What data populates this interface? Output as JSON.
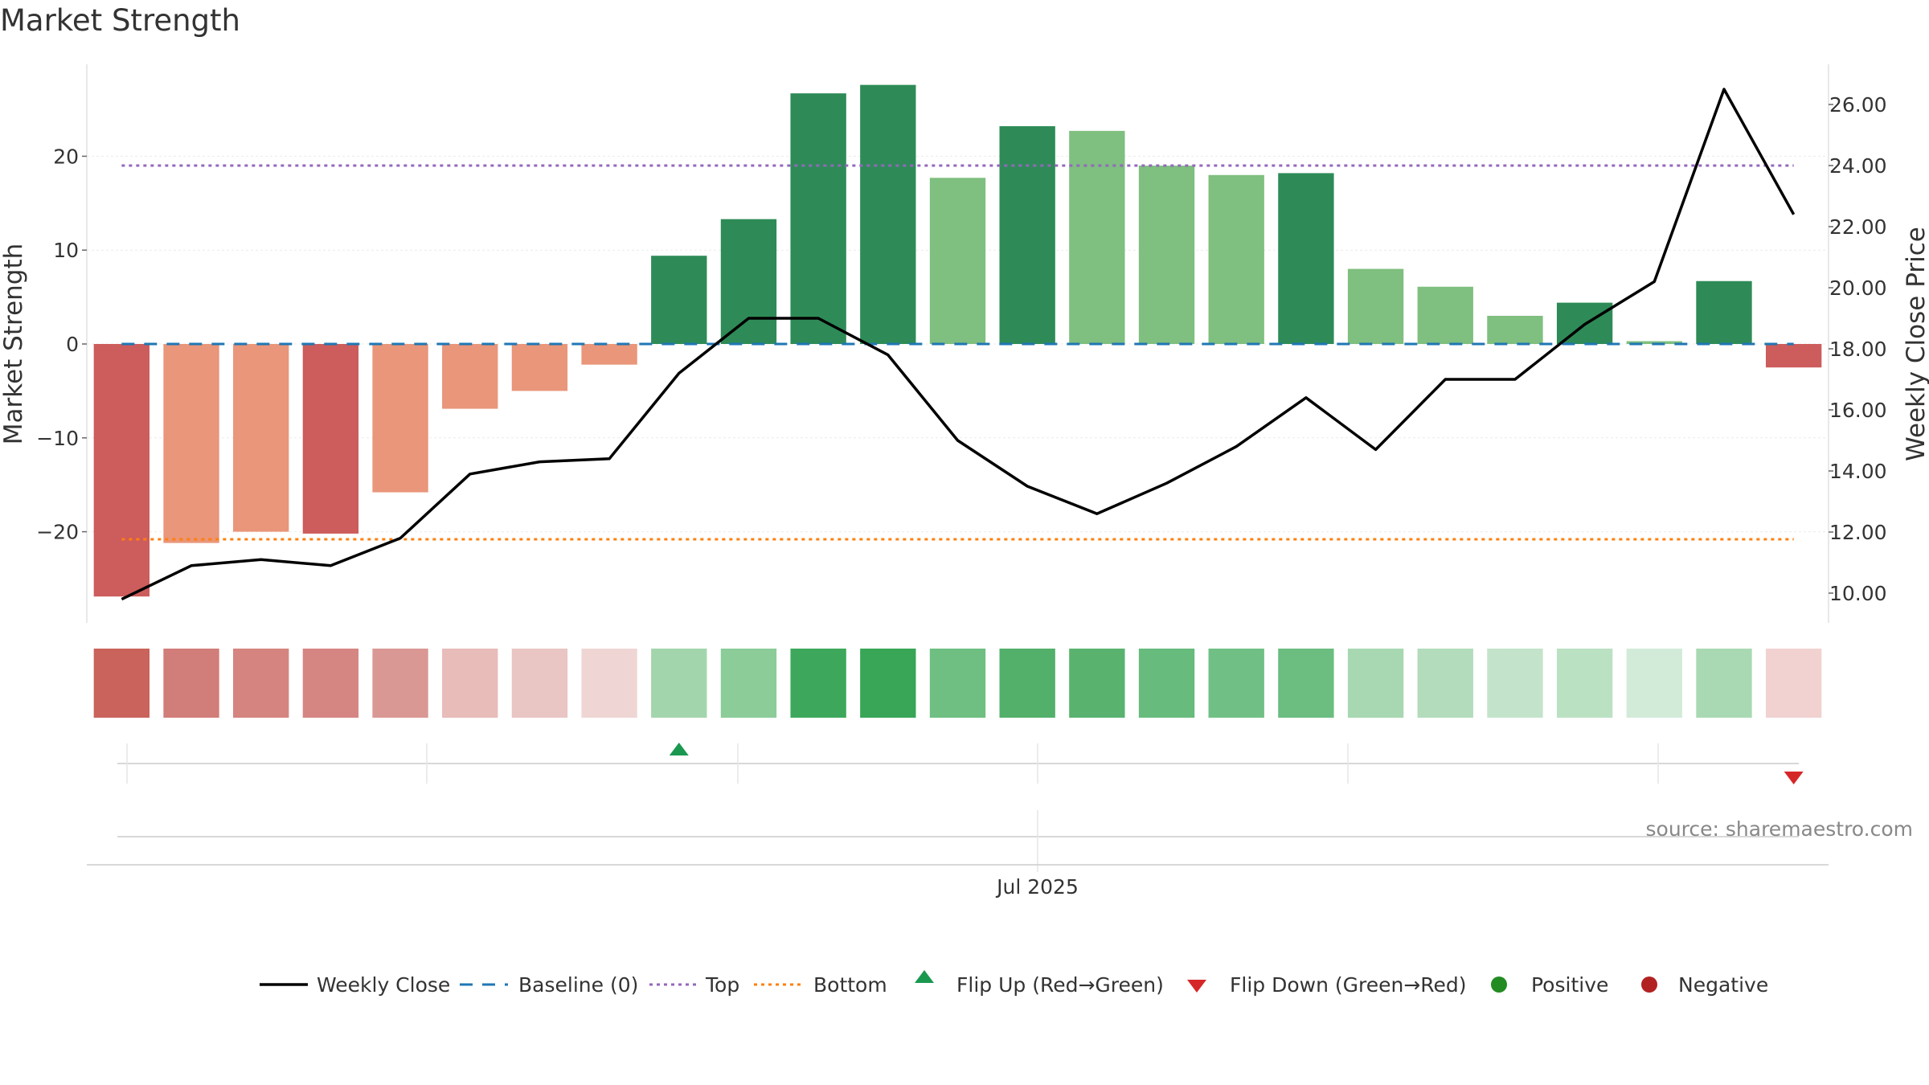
{
  "title": "Market Strength",
  "source": "source: sharemaestro.com",
  "chart_data": {
    "type": "bar",
    "title": "Market Strength",
    "ylabel_left": "Market Strength",
    "ylabel_right": "Weekly Close Price",
    "left_axis": {
      "ylim": [
        -30,
        30
      ],
      "ticks": [
        20,
        10,
        0,
        -10,
        -20
      ],
      "tick_labels": [
        "20",
        "10",
        "0",
        "−10",
        "−20"
      ]
    },
    "right_axis": {
      "ylim": [
        9,
        27.8
      ],
      "ticks": [
        26,
        24,
        22,
        20,
        18,
        16,
        14,
        12,
        10
      ],
      "tick_labels": [
        "26.00",
        "24.00",
        "22.00",
        "20.00",
        "18.00",
        "16.00",
        "14.00",
        "12.00",
        "10.00"
      ]
    },
    "x_tick_label": "Jul 2025",
    "bars": [
      {
        "value": -26.9,
        "color": "#cd5c5c"
      },
      {
        "value": -21.2,
        "color": "#e9967a"
      },
      {
        "value": -20.0,
        "color": "#e9967a"
      },
      {
        "value": -20.2,
        "color": "#cd5c5c"
      },
      {
        "value": -15.8,
        "color": "#e9967a"
      },
      {
        "value": -6.9,
        "color": "#e9967a"
      },
      {
        "value": -5.0,
        "color": "#e9967a"
      },
      {
        "value": -2.2,
        "color": "#e9967a"
      },
      {
        "value": 9.4,
        "color": "#2e8b57"
      },
      {
        "value": 13.3,
        "color": "#2e8b57"
      },
      {
        "value": 26.7,
        "color": "#2e8b57"
      },
      {
        "value": 27.6,
        "color": "#2e8b57"
      },
      {
        "value": 17.7,
        "color": "#7fbf7f"
      },
      {
        "value": 23.2,
        "color": "#2e8b57"
      },
      {
        "value": 22.7,
        "color": "#7fbf7f"
      },
      {
        "value": 19.0,
        "color": "#7fbf7f"
      },
      {
        "value": 18.0,
        "color": "#7fbf7f"
      },
      {
        "value": 18.2,
        "color": "#2e8b57"
      },
      {
        "value": 8.0,
        "color": "#7fbf7f"
      },
      {
        "value": 6.1,
        "color": "#7fbf7f"
      },
      {
        "value": 3.0,
        "color": "#7fbf7f"
      },
      {
        "value": 4.4,
        "color": "#2e8b57"
      },
      {
        "value": 0.3,
        "color": "#7fbf7f"
      },
      {
        "value": 6.7,
        "color": "#2e8b57"
      },
      {
        "value": -2.5,
        "color": "#cd5c5c"
      }
    ],
    "weekly_close": [
      9.8,
      10.9,
      11.1,
      10.9,
      11.8,
      13.9,
      14.3,
      14.4,
      17.2,
      19.0,
      19.0,
      17.8,
      15.0,
      13.5,
      12.6,
      13.6,
      14.8,
      16.4,
      14.7,
      17.0,
      17.0,
      18.8,
      20.2,
      26.5,
      22.4
    ],
    "top_level": 24.0,
    "bottom_level": -20.8,
    "baseline": 0,
    "heat_strip_colors": [
      "#c9635b",
      "#d17d79",
      "#d5847f",
      "#d68682",
      "#da9894",
      "#e8bcb9",
      "#e9c5c3",
      "#efd6d4",
      "#a3d5ad",
      "#8bcc99",
      "#3da85b",
      "#38a656",
      "#6ebf81",
      "#53b06a",
      "#59b36f",
      "#67bb7c",
      "#70c085",
      "#6bbd80",
      "#a7d8b1",
      "#b2dcbb",
      "#c3e4ca",
      "#bbe1c3",
      "#d2ebd8",
      "#a9d9b3",
      "#f1d2d1"
    ],
    "flip_up_index": 8,
    "flip_down_index": 24,
    "legend": [
      "Weekly Close",
      "Baseline (0)",
      "Top",
      "Bottom",
      "Flip Up (Red→Green)",
      "Flip Down (Green→Red)",
      "Positive",
      "Negative"
    ],
    "colors": {
      "line": "#000000",
      "baseline": "#1f77b4",
      "top": "#9467bd",
      "bottom": "#ff7f0e",
      "flip_up": "#1a9850",
      "flip_down": "#d62728",
      "positive": "#228b22",
      "negative": "#b22222"
    }
  }
}
